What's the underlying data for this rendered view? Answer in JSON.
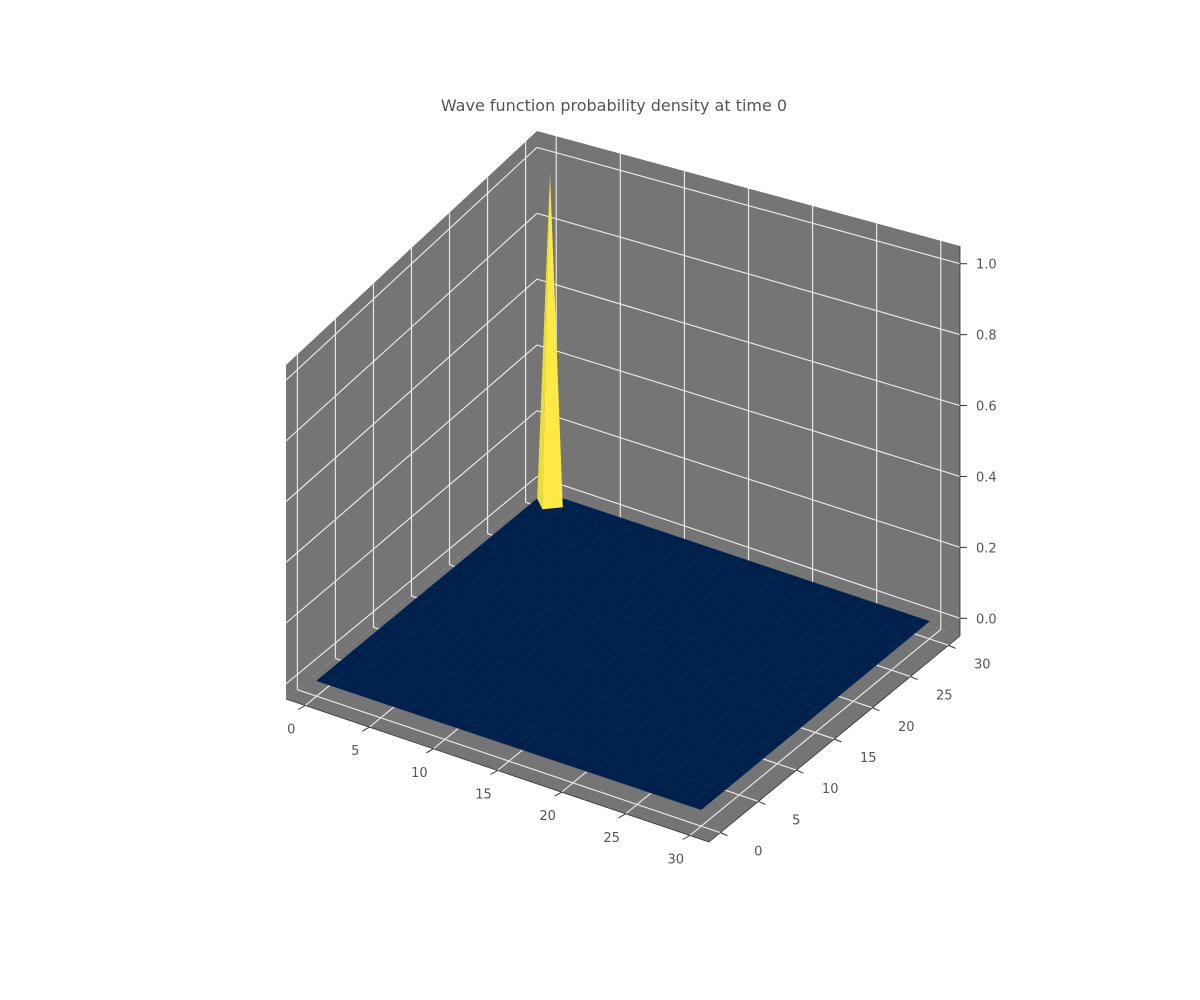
{
  "chart_data": {
    "type": "surface3d",
    "title": "Wave function probability density at time 0",
    "x_ticks": [
      "0",
      "5",
      "10",
      "15",
      "20",
      "25",
      "30"
    ],
    "y_ticks": [
      "0",
      "5",
      "10",
      "15",
      "20",
      "25",
      "30"
    ],
    "z_ticks": [
      "0.0",
      "0.2",
      "0.4",
      "0.6",
      "0.8",
      "1.0"
    ],
    "x_range": [
      0,
      30
    ],
    "y_range": [
      0,
      30
    ],
    "zlim": [
      0,
      1
    ],
    "grid_size": 31,
    "peak": {
      "x": 1,
      "y": 29,
      "z": 1.0
    },
    "baseline_z": 0.0,
    "grid": true,
    "colors": {
      "pane": "#757575",
      "grid": "#e6e6e6",
      "surface_low": "#00204c",
      "surface_high": "#ffe945",
      "surface_edge": "#0b2d5c"
    }
  }
}
